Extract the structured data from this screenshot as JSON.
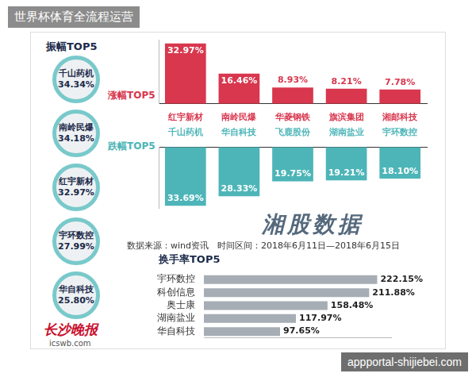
{
  "watermark": "世界杯体育全流程运营",
  "watermark_url": "appportal-shijiebei.com",
  "amplitude": {
    "title": "振幅TOP5",
    "rows": [
      [
        "千山药机",
        "34.34%"
      ],
      [
        "南岭民爆",
        "34.18%"
      ],
      [
        "红宇新材",
        "32.97%"
      ],
      [
        "宇环数控",
        "27.99%"
      ],
      [
        "华自科技",
        "25.80%"
      ]
    ]
  },
  "banner": "湘股数据",
  "source": "数据来源：wind资讯　时间区间：2018年6月11日—2018年6月15日",
  "logo": {
    "name": "长沙晚报",
    "url": "icswb.com"
  },
  "chart_data": [
    {
      "type": "bar",
      "series": [
        {
          "name": "涨幅TOP5",
          "color": "#d8374e",
          "categories": [
            "红宇新材",
            "南岭民爆",
            "华菱钢铁",
            "旗滨集团",
            "湘邮科技"
          ],
          "values": [
            32.97,
            16.46,
            8.93,
            8.21,
            7.78
          ],
          "value_labels": [
            "32.97%",
            "16.46%",
            "8.93%",
            "8.21%",
            "7.78%"
          ]
        },
        {
          "name": "跌幅TOP5",
          "color": "#4db5b8",
          "categories": [
            "千山药机",
            "华自科技",
            "飞鹿股份",
            "湖南盐业",
            "宇环数控"
          ],
          "values": [
            33.69,
            28.33,
            19.75,
            19.21,
            18.1
          ],
          "value_labels": [
            "33.69%",
            "28.33%",
            "19.75%",
            "19.21%",
            "18.10%"
          ]
        }
      ],
      "ylim": [
        0,
        35
      ],
      "tick_labels": "x",
      "data_labels": true,
      "grid": false
    },
    {
      "type": "bar",
      "title": "换手率TOP5",
      "orientation": "horizontal",
      "categories": [
        "宇环数控",
        "科创信息",
        "奥士康",
        "湖南盐业",
        "华自科技"
      ],
      "values": [
        222.15,
        211.88,
        158.48,
        117.97,
        97.65
      ],
      "value_labels": [
        "222.15%",
        "211.88%",
        "158.48%",
        "117.97%",
        "97.65%"
      ],
      "color": "#a7adb5",
      "xlim": [
        0,
        240
      ],
      "tick_labels": "y",
      "data_labels": true,
      "grid": false
    }
  ]
}
